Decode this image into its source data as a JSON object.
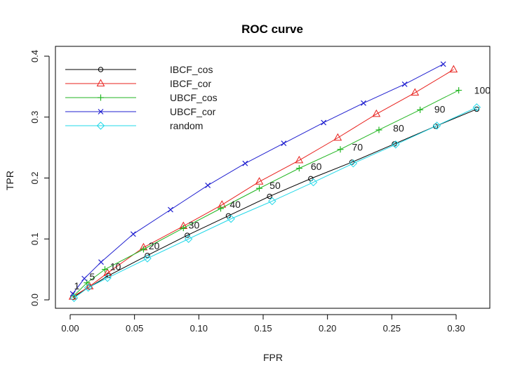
{
  "chart_data": {
    "type": "line",
    "title": "ROC curve",
    "xlabel": "FPR",
    "ylabel": "TPR",
    "xlim": [
      0.0,
      0.32
    ],
    "ylim": [
      0.0,
      0.4
    ],
    "xticks": [
      0.0,
      0.05,
      0.1,
      0.15,
      0.2,
      0.25,
      0.3
    ],
    "xtick_labels": [
      "0.00",
      "0.05",
      "0.10",
      "0.15",
      "0.20",
      "0.25",
      "0.30"
    ],
    "yticks": [
      0.0,
      0.1,
      0.2,
      0.3,
      0.4
    ],
    "ytick_labels": [
      "0.0",
      "0.1",
      "0.2",
      "0.3",
      "0.4"
    ],
    "legend_position": "top-left",
    "series": [
      {
        "name": "IBCF_cos",
        "color": "#000000",
        "marker": "circle",
        "x": [
          0.002,
          0.015,
          0.03,
          0.06,
          0.091,
          0.123,
          0.155,
          0.187,
          0.219,
          0.252,
          0.284,
          0.316
        ],
        "y": [
          0.004,
          0.021,
          0.04,
          0.073,
          0.106,
          0.138,
          0.17,
          0.199,
          0.226,
          0.256,
          0.285,
          0.313
        ]
      },
      {
        "name": "IBCF_cor",
        "color": "#e8201c",
        "marker": "triangle",
        "x": [
          0.002,
          0.015,
          0.029,
          0.057,
          0.088,
          0.118,
          0.147,
          0.178,
          0.208,
          0.238,
          0.268,
          0.298
        ],
        "y": [
          0.005,
          0.022,
          0.044,
          0.086,
          0.121,
          0.156,
          0.194,
          0.229,
          0.266,
          0.305,
          0.34,
          0.378
        ]
      },
      {
        "name": "UBCF_cos",
        "color": "#22b622",
        "marker": "plus",
        "x": [
          0.003,
          0.013,
          0.027,
          0.057,
          0.088,
          0.117,
          0.147,
          0.178,
          0.21,
          0.24,
          0.272,
          0.302
        ],
        "y": [
          0.007,
          0.028,
          0.05,
          0.083,
          0.118,
          0.15,
          0.183,
          0.216,
          0.247,
          0.279,
          0.312,
          0.344
        ]
      },
      {
        "name": "UBCF_cor",
        "color": "#2020d0",
        "marker": "x",
        "x": [
          0.002,
          0.011,
          0.024,
          0.049,
          0.078,
          0.107,
          0.136,
          0.166,
          0.197,
          0.228,
          0.26,
          0.29
        ],
        "y": [
          0.01,
          0.035,
          0.062,
          0.108,
          0.148,
          0.188,
          0.224,
          0.257,
          0.291,
          0.323,
          0.354,
          0.387
        ]
      },
      {
        "name": "random",
        "color": "#22d8e8",
        "marker": "diamond",
        "x": [
          0.003,
          0.014,
          0.029,
          0.06,
          0.092,
          0.125,
          0.157,
          0.189,
          0.22,
          0.253,
          0.285,
          0.316
        ],
        "y": [
          0.003,
          0.02,
          0.036,
          0.068,
          0.1,
          0.133,
          0.162,
          0.193,
          0.224,
          0.255,
          0.286,
          0.316
        ]
      }
    ],
    "point_labels": [
      {
        "text": "1",
        "x": 0.003,
        "y": 0.023
      },
      {
        "text": "5",
        "x": 0.015,
        "y": 0.038
      },
      {
        "text": "10",
        "x": 0.031,
        "y": 0.055
      },
      {
        "text": "20",
        "x": 0.061,
        "y": 0.089
      },
      {
        "text": "30",
        "x": 0.092,
        "y": 0.123
      },
      {
        "text": "40",
        "x": 0.124,
        "y": 0.157
      },
      {
        "text": "50",
        "x": 0.155,
        "y": 0.188
      },
      {
        "text": "60",
        "x": 0.187,
        "y": 0.219
      },
      {
        "text": "70",
        "x": 0.219,
        "y": 0.251
      },
      {
        "text": "80",
        "x": 0.251,
        "y": 0.282
      },
      {
        "text": "90",
        "x": 0.283,
        "y": 0.313
      },
      {
        "text": "100",
        "x": 0.314,
        "y": 0.344
      }
    ]
  }
}
